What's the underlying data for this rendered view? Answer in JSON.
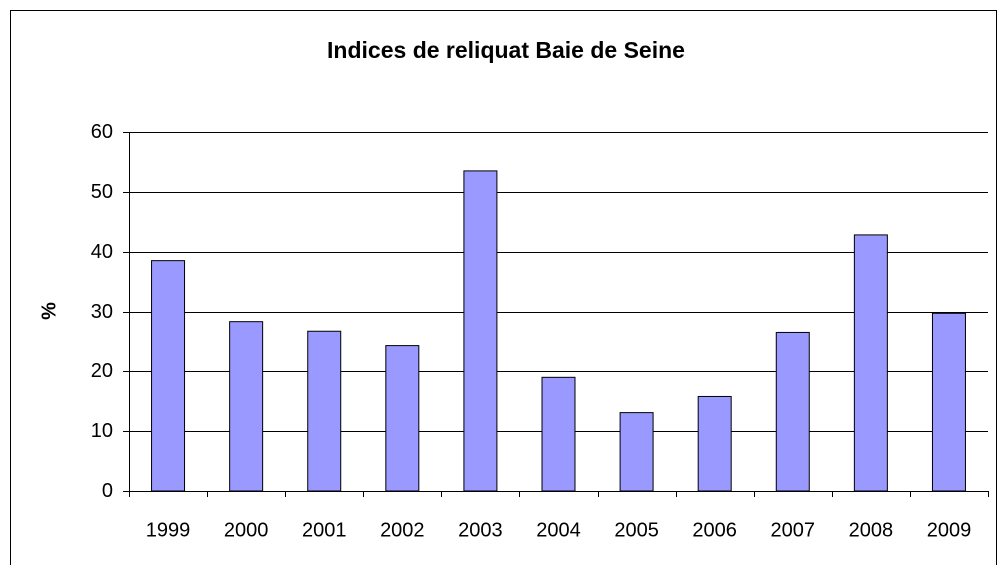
{
  "chart_data": {
    "type": "bar",
    "title": "Indices de reliquat Baie de Seine",
    "y_label": "%",
    "categories": [
      "1999",
      "2000",
      "2001",
      "2002",
      "2003",
      "2004",
      "2005",
      "2006",
      "2007",
      "2008",
      "2009"
    ],
    "values": [
      38.5,
      28.3,
      26.7,
      24.3,
      53.5,
      19,
      13.1,
      15.8,
      26.5,
      42.8,
      29.7
    ],
    "color": "#9999ff",
    "ylim": [
      0,
      60
    ],
    "yticks": [
      0,
      10,
      20,
      30,
      40,
      50,
      60
    ],
    "grid": true
  }
}
